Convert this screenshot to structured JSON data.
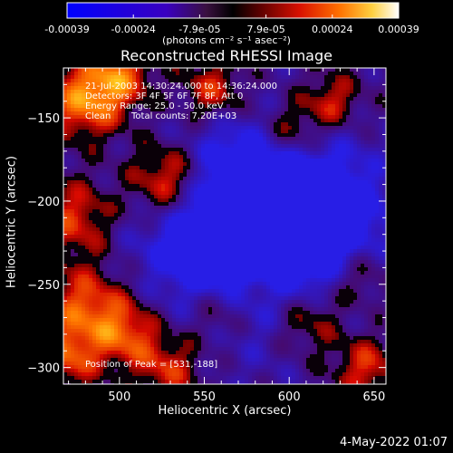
{
  "colorbar": {
    "tick_labels": [
      "-0.00039",
      "-0.00024",
      "-7.9e-05",
      "7.9e-05",
      "0.00024",
      "0.00039"
    ],
    "units_label": "(photons cm⁻² s⁻¹ asec⁻²)",
    "range": [
      -0.00039,
      0.00039
    ]
  },
  "chart_data": {
    "type": "heatmap",
    "title": "Reconstructed RHESSI Image",
    "xlabel": "Heliocentric X (arcsec)",
    "ylabel": "Heliocentric Y (arcsec)",
    "xlim": [
      467,
      657
    ],
    "ylim": [
      -310,
      -120
    ],
    "x_ticks": [
      500,
      550,
      600,
      650
    ],
    "y_ticks": [
      -150,
      -200,
      -250,
      -300
    ],
    "annotations": {
      "time": "21-Jul-2003 14:30:24.000 to 14:36:24.000",
      "detectors": "Detectors: 3F 4F 5F 6F 7F 8F, Att 0",
      "energy": "Energy Range: 25.0 - 50.0 keV",
      "method": "Clean",
      "counts": "Total counts: 7.20E+03",
      "peak": "Position of Peak = [531,-188]"
    },
    "peak": [
      531,
      -188
    ]
  },
  "footer": {
    "timestamp": "4-May-2022 01:07"
  }
}
